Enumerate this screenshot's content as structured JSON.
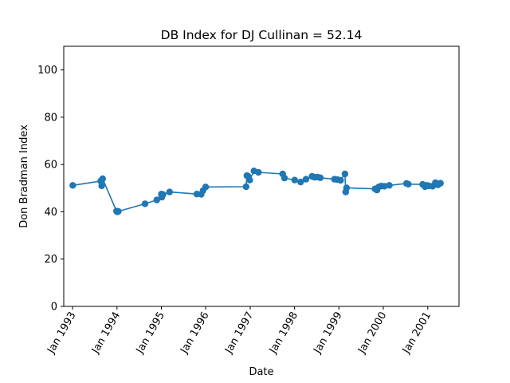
{
  "chart_data": {
    "type": "line",
    "title": "DB Index for DJ Cullinan = 52.14",
    "xlabel": "Date",
    "ylabel": "Don Bradman Index",
    "ylim": [
      0,
      110
    ],
    "xlim": [
      "1992-10-20",
      "2001-09-15"
    ],
    "yticks": [
      0,
      20,
      40,
      60,
      80,
      100
    ],
    "xticks": [
      {
        "date": "1993-01-01",
        "label": "Jan 1993"
      },
      {
        "date": "1994-01-01",
        "label": "Jan 1994"
      },
      {
        "date": "1995-01-01",
        "label": "Jan 1995"
      },
      {
        "date": "1996-01-01",
        "label": "Jan 1996"
      },
      {
        "date": "1997-01-01",
        "label": "Jan 1997"
      },
      {
        "date": "1998-01-01",
        "label": "Jan 1998"
      },
      {
        "date": "1999-01-01",
        "label": "Jan 1999"
      },
      {
        "date": "2000-01-01",
        "label": "Jan 2000"
      },
      {
        "date": "2001-01-01",
        "label": "Jan 2001"
      }
    ],
    "grid": false,
    "color": "#1f77b4",
    "series": [
      {
        "x": [
          "1993-01-02",
          "1993-08-20",
          "1993-08-28",
          "1993-09-05",
          "1993-12-28",
          "1994-01-04",
          "1994-01-12",
          "1994-08-20",
          "1994-11-25",
          "1995-01-01",
          "1995-01-05",
          "1995-01-15",
          "1995-03-10",
          "1995-10-20",
          "1995-11-25",
          "1995-12-10",
          "1996-01-01",
          "1996-11-28",
          "1996-12-05",
          "1996-12-15",
          "1996-12-28",
          "1997-02-01",
          "1997-03-10",
          "1997-09-25",
          "1997-10-10",
          "1998-01-02",
          "1998-02-20",
          "1998-04-05",
          "1998-05-25",
          "1998-06-15",
          "1998-07-10",
          "1998-08-01",
          "1998-11-25",
          "1998-12-20",
          "1999-01-15",
          "1999-02-20",
          "1999-02-26",
          "1999-03-05",
          "1999-10-25",
          "1999-11-10",
          "1999-11-25",
          "1999-12-15",
          "2000-01-10",
          "2000-02-20",
          "2000-07-10",
          "2000-07-25",
          "2000-11-20",
          "2000-12-10",
          "2000-12-25",
          "2001-01-10",
          "2001-02-10",
          "2001-03-05",
          "2001-03-25",
          "2001-04-15"
        ],
        "y": [
          51.2,
          53.0,
          51.0,
          54.0,
          40.3,
          40.0,
          40.2,
          43.4,
          45.0,
          47.5,
          46.2,
          47.3,
          48.4,
          47.5,
          47.4,
          49.0,
          50.5,
          50.6,
          55.3,
          55.0,
          53.4,
          57.3,
          56.7,
          56.0,
          54.3,
          53.4,
          52.6,
          53.8,
          55.0,
          54.6,
          54.7,
          54.4,
          53.8,
          53.6,
          53.3,
          56.0,
          48.4,
          50.1,
          49.7,
          49.2,
          50.5,
          50.9,
          50.8,
          51.2,
          52.0,
          51.7,
          51.6,
          50.6,
          51.2,
          51.0,
          50.8,
          52.3,
          51.4,
          52.1
        ]
      }
    ]
  }
}
